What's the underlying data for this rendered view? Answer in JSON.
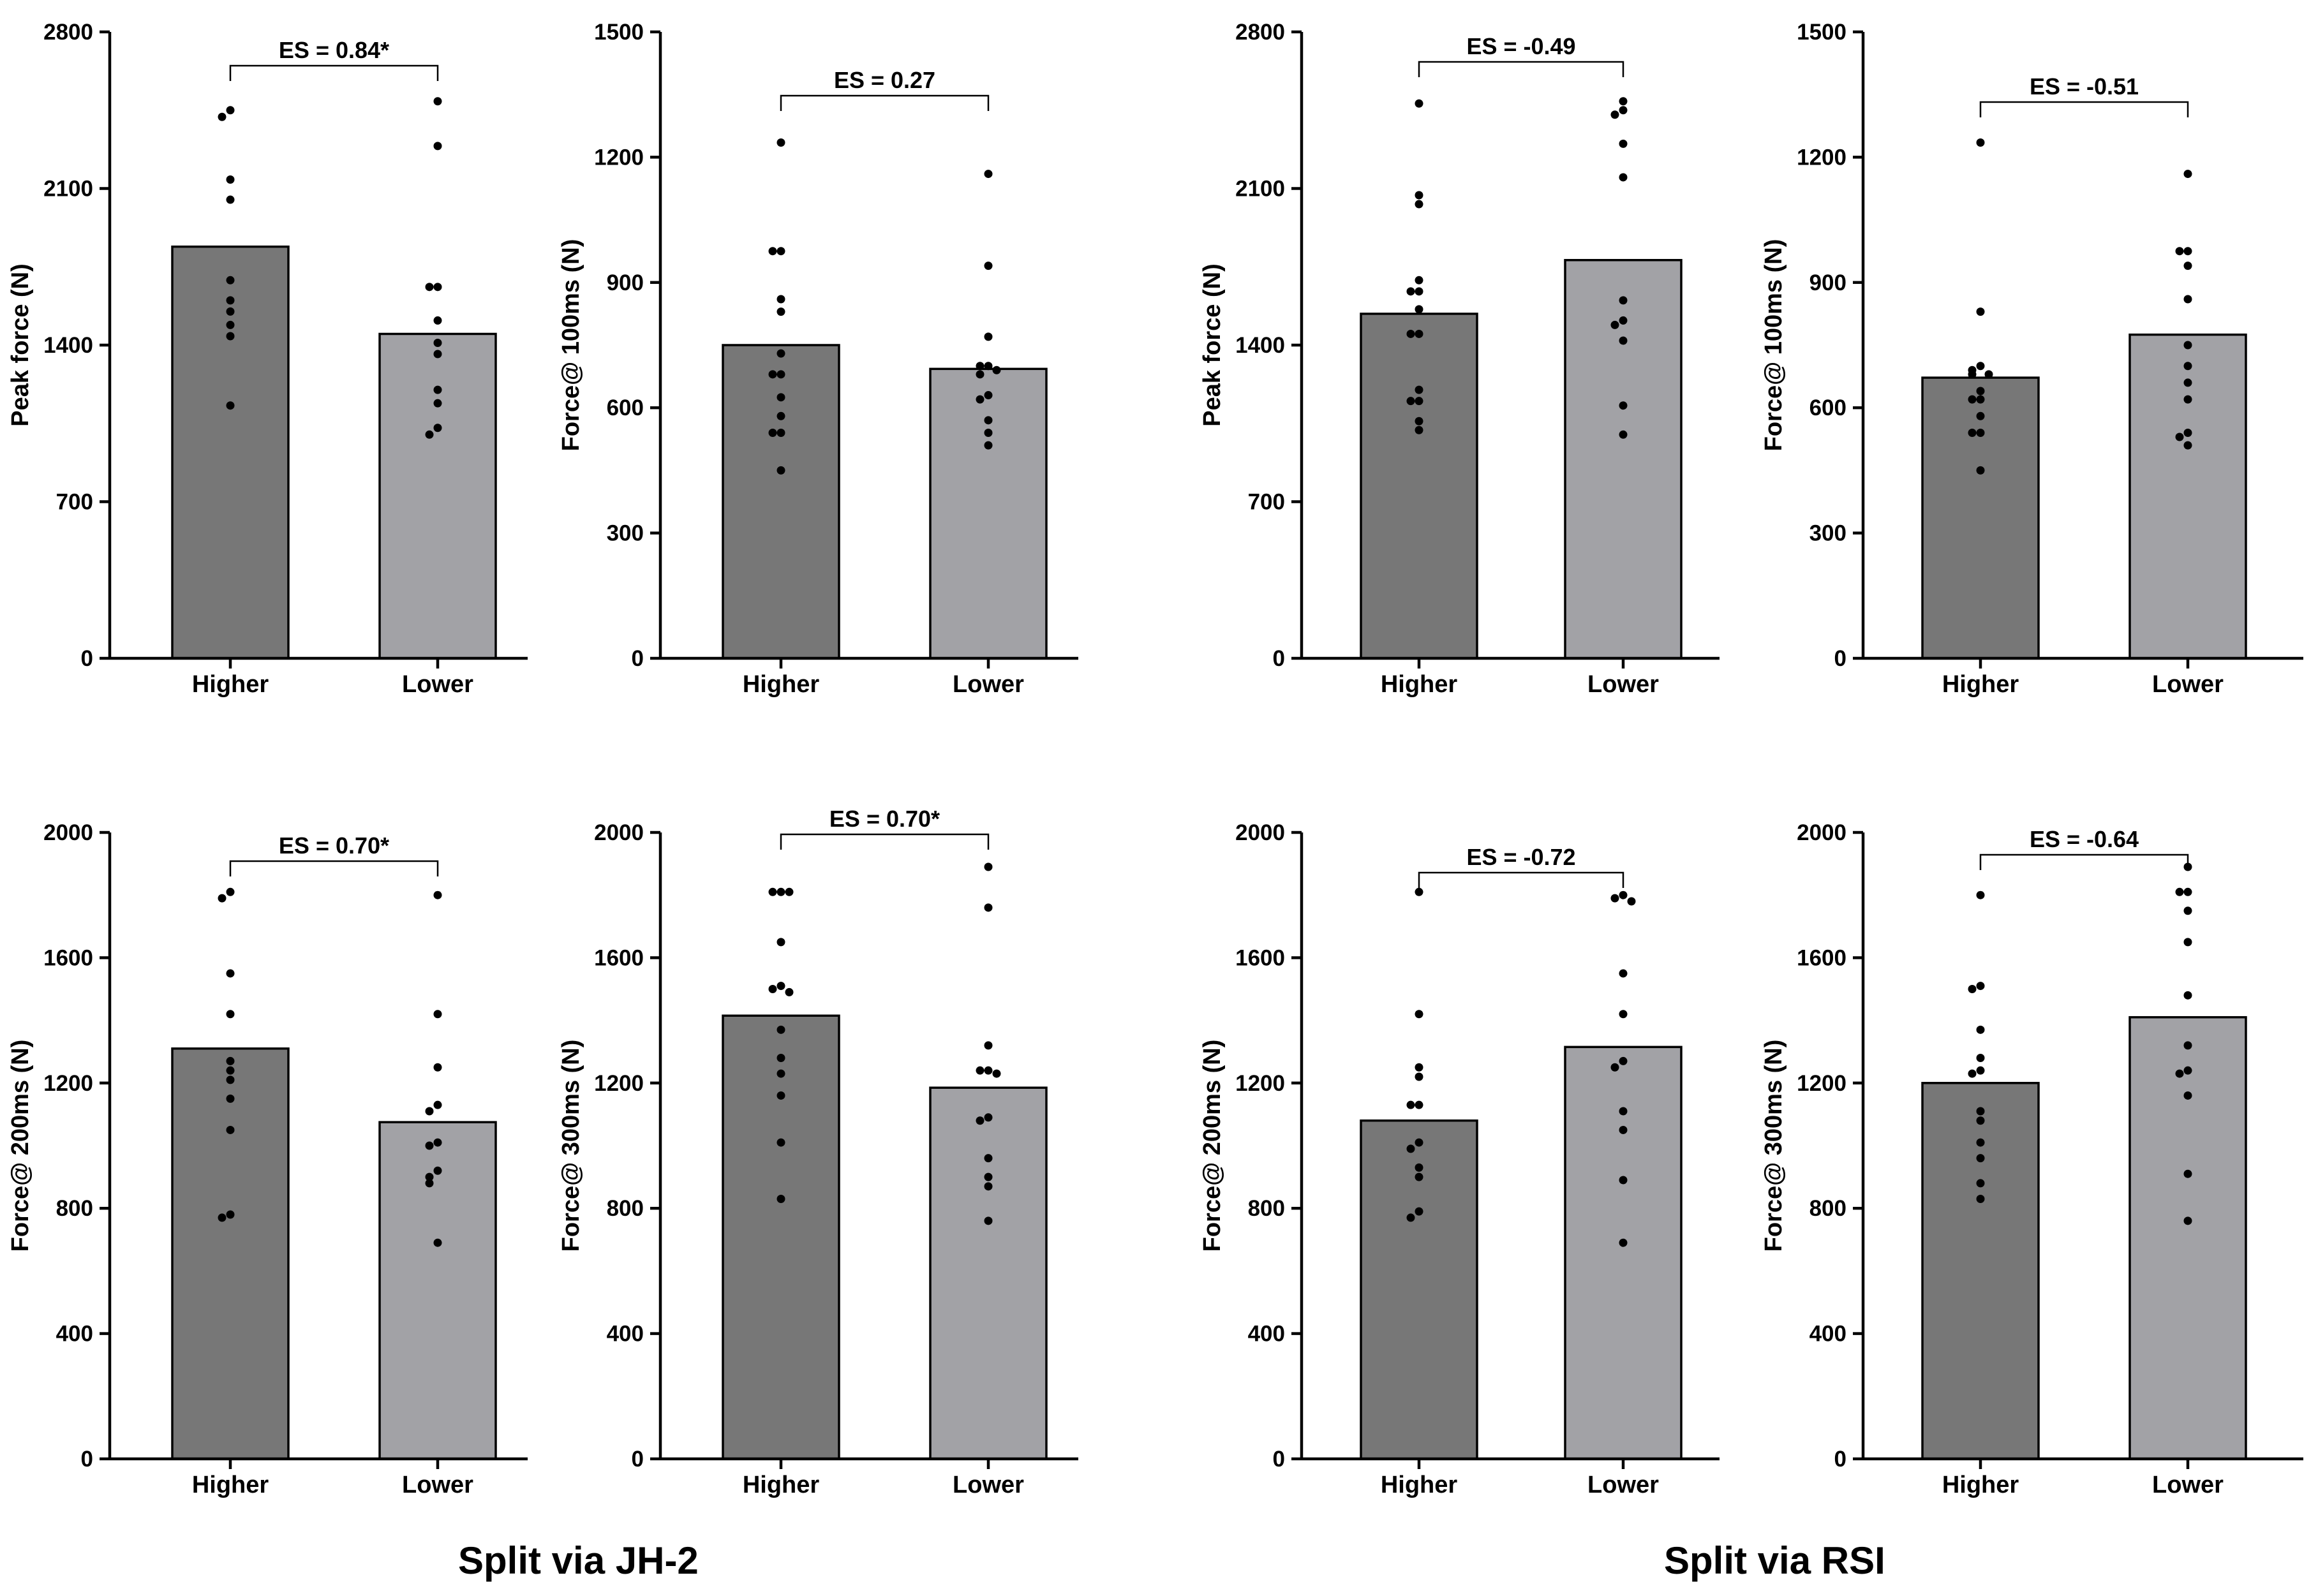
{
  "groups": [
    {
      "label": "Split via JH-2"
    },
    {
      "label": "Split via RSI"
    }
  ],
  "colors": {
    "higher": "#777777",
    "lower": "#a2a2a6",
    "dot": "#000000"
  },
  "chart_data": [
    {
      "type": "bar",
      "group": "Split via JH-2",
      "ylabel": "Peak force (N)",
      "categories": [
        "Higher",
        "Lower"
      ],
      "ylim": [
        0,
        2800
      ],
      "yticks": [
        0,
        700,
        1400,
        2100,
        2800
      ],
      "values": [
        1840,
        1450
      ],
      "es_label": "ES = 0.84*",
      "points": [
        [
          2450,
          2420,
          2140,
          2050,
          1690,
          1600,
          1550,
          1490,
          1440,
          1130
        ],
        [
          2490,
          2290,
          1660,
          1660,
          1510,
          1410,
          1360,
          1200,
          1140,
          1030,
          1000
        ]
      ]
    },
    {
      "type": "bar",
      "group": "Split via JH-2",
      "ylabel": "Force@ 100ms (N)",
      "categories": [
        "Higher",
        "Lower"
      ],
      "ylim": [
        0,
        1500
      ],
      "yticks": [
        0,
        300,
        600,
        900,
        1200,
        1500
      ],
      "values": [
        750,
        693
      ],
      "es_label": "ES = 0.27",
      "points": [
        [
          1235,
          975,
          975,
          860,
          830,
          730,
          680,
          680,
          625,
          580,
          540,
          540,
          450
        ],
        [
          1160,
          940,
          770,
          700,
          700,
          690,
          680,
          630,
          620,
          570,
          540,
          510
        ]
      ]
    },
    {
      "type": "bar",
      "group": "Split via RSI",
      "ylabel": "Peak force (N)",
      "categories": [
        "Higher",
        "Lower"
      ],
      "ylim": [
        0,
        2800
      ],
      "yticks": [
        0,
        700,
        1400,
        2100,
        2800
      ],
      "values": [
        1540,
        1780
      ],
      "es_label": "ES = -0.49",
      "points": [
        [
          2480,
          2070,
          2030,
          1690,
          1640,
          1640,
          1560,
          1450,
          1450,
          1200,
          1150,
          1150,
          1060,
          1020
        ],
        [
          2490,
          2450,
          2430,
          2300,
          2150,
          1600,
          1510,
          1490,
          1420,
          1130,
          1000
        ]
      ]
    },
    {
      "type": "bar",
      "group": "Split via RSI",
      "ylabel": "Force@ 100ms (N)",
      "categories": [
        "Higher",
        "Lower"
      ],
      "ylim": [
        0,
        1500
      ],
      "yticks": [
        0,
        300,
        600,
        900,
        1200,
        1500
      ],
      "values": [
        672,
        775
      ],
      "es_label": "ES = -0.51",
      "points": [
        [
          1235,
          830,
          700,
          690,
          680,
          680,
          640,
          620,
          620,
          580,
          540,
          540,
          450
        ],
        [
          1160,
          975,
          975,
          940,
          860,
          750,
          700,
          660,
          620,
          540,
          530,
          510
        ]
      ]
    },
    {
      "type": "bar",
      "group": "Split via JH-2",
      "ylabel": "Force@ 200ms (N)",
      "categories": [
        "Higher",
        "Lower"
      ],
      "ylim": [
        0,
        2000
      ],
      "yticks": [
        0,
        400,
        800,
        1200,
        1600,
        2000
      ],
      "values": [
        1310,
        1075
      ],
      "es_label": "ES = 0.70*",
      "points": [
        [
          1810,
          1790,
          1550,
          1420,
          1270,
          1240,
          1210,
          1150,
          1050,
          780,
          770
        ],
        [
          1800,
          1420,
          1250,
          1130,
          1110,
          1010,
          1000,
          920,
          900,
          880,
          690
        ]
      ]
    },
    {
      "type": "bar",
      "group": "Split via JH-2",
      "ylabel": "Force@ 300ms (N)",
      "categories": [
        "Higher",
        "Lower"
      ],
      "ylim": [
        0,
        2000
      ],
      "yticks": [
        0,
        400,
        800,
        1200,
        1600,
        2000
      ],
      "values": [
        1415,
        1185
      ],
      "es_label": "ES = 0.70*",
      "points": [
        [
          1810,
          1810,
          1810,
          1650,
          1510,
          1500,
          1490,
          1370,
          1280,
          1230,
          1160,
          1010,
          830
        ],
        [
          1890,
          1760,
          1320,
          1240,
          1240,
          1230,
          1090,
          1080,
          960,
          900,
          870,
          760
        ]
      ]
    },
    {
      "type": "bar",
      "group": "Split via RSI",
      "ylabel": "Force@ 200ms (N)",
      "categories": [
        "Higher",
        "Lower"
      ],
      "ylim": [
        0,
        2000
      ],
      "yticks": [
        0,
        400,
        800,
        1200,
        1600,
        2000
      ],
      "values": [
        1080,
        1315
      ],
      "es_label": "ES = -0.72",
      "points": [
        [
          1810,
          1420,
          1250,
          1220,
          1130,
          1130,
          1010,
          990,
          930,
          900,
          790,
          770
        ],
        [
          1800,
          1790,
          1780,
          1550,
          1420,
          1270,
          1250,
          1110,
          1050,
          890,
          690
        ]
      ]
    },
    {
      "type": "bar",
      "group": "Split via RSI",
      "ylabel": "Force@ 300ms (N)",
      "categories": [
        "Higher",
        "Lower"
      ],
      "ylim": [
        0,
        2000
      ],
      "yticks": [
        0,
        400,
        800,
        1200,
        1600,
        2000
      ],
      "values": [
        1200,
        1410
      ],
      "es_label": "ES = -0.64",
      "points": [
        [
          1800,
          1510,
          1500,
          1370,
          1280,
          1240,
          1230,
          1110,
          1080,
          1010,
          960,
          880,
          830
        ],
        [
          1890,
          1810,
          1810,
          1750,
          1650,
          1480,
          1320,
          1240,
          1230,
          1160,
          910,
          760
        ]
      ]
    }
  ]
}
